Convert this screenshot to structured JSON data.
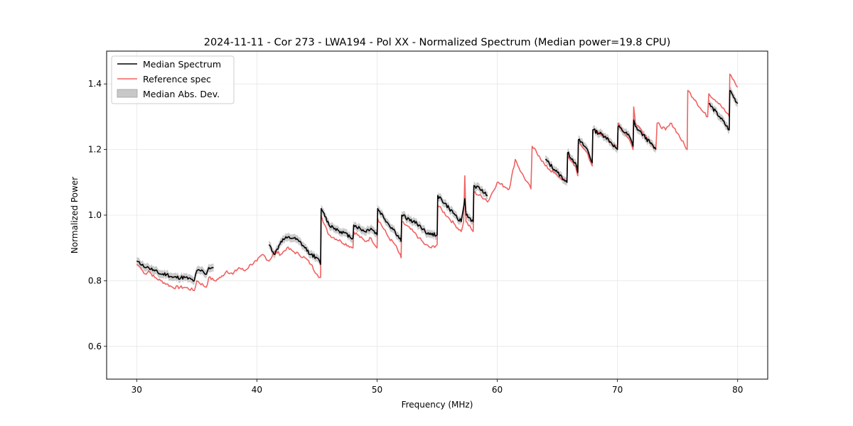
{
  "chart_data": {
    "type": "line",
    "title": "2024-11-11 - Cor 273 - LWA194 - Pol XX - Normalized Spectrum (Median power=19.8 CPU)",
    "xlabel": "Frequency (MHz)",
    "ylabel": "Normalized Power",
    "xlim": [
      27.5,
      82.5
    ],
    "ylim": [
      0.5,
      1.5
    ],
    "xticks": [
      30,
      40,
      50,
      60,
      70,
      80
    ],
    "xtick_labels": [
      "30",
      "40",
      "50",
      "60",
      "70",
      "80"
    ],
    "yticks": [
      0.6,
      0.8,
      1.0,
      1.2,
      1.4
    ],
    "ytick_labels": [
      "0.6",
      "0.8",
      "1.0",
      "1.2",
      "1.4"
    ],
    "grid": true,
    "legend_position": "top-left",
    "colors": {
      "median": "#000000",
      "reference": "#f06262",
      "band": "#c8c8c8"
    },
    "legend": [
      {
        "label": "Median Spectrum",
        "kind": "line",
        "series": "median"
      },
      {
        "label": "Reference spec",
        "kind": "line",
        "series": "reference"
      },
      {
        "label": "Median Abs. Dev.",
        "kind": "band",
        "series": "band"
      }
    ],
    "series": [
      {
        "name": "Reference spec",
        "id": "reference",
        "color": "#f06262",
        "x": [
          30.0,
          30.3,
          30.5,
          30.8,
          31.0,
          31.5,
          32.0,
          32.5,
          33.0,
          34.0,
          34.8,
          35.0,
          35.8,
          36.0,
          36.5,
          37.0,
          37.5,
          38.0,
          38.5,
          39.0,
          39.5,
          40.0,
          40.5,
          41.0,
          41.5,
          42.0,
          42.5,
          43.0,
          43.5,
          44.0,
          44.5,
          45.0,
          45.3,
          45.35,
          45.5,
          46.0,
          47.0,
          48.0,
          48.05,
          49.0,
          49.5,
          50.0,
          50.05,
          51.0,
          51.5,
          52.0,
          52.05,
          53.0,
          53.5,
          54.0,
          54.5,
          55.0,
          55.05,
          56.0,
          56.5,
          57.0,
          57.2,
          57.3,
          57.4,
          58.0,
          58.05,
          59.0,
          59.2,
          60.0,
          61.0,
          61.5,
          62.0,
          62.8,
          62.9,
          63.5,
          64.0,
          65.0,
          65.8,
          65.85,
          66.5,
          66.7,
          66.75,
          67.5,
          67.9,
          67.95,
          69.0,
          69.5,
          70.0,
          70.05,
          71.0,
          71.3,
          71.35,
          71.5,
          72.0,
          73.2,
          73.3,
          74.0,
          74.5,
          75.0,
          75.8,
          75.85,
          76.5,
          77.0,
          77.5,
          77.6,
          78.5,
          79.3,
          79.35,
          80.0
        ],
        "y": [
          0.85,
          0.84,
          0.83,
          0.82,
          0.83,
          0.81,
          0.8,
          0.79,
          0.78,
          0.78,
          0.77,
          0.8,
          0.78,
          0.81,
          0.8,
          0.81,
          0.83,
          0.82,
          0.84,
          0.83,
          0.85,
          0.86,
          0.88,
          0.86,
          0.89,
          0.88,
          0.9,
          0.89,
          0.88,
          0.87,
          0.85,
          0.82,
          0.81,
          1.0,
          0.98,
          0.94,
          0.92,
          0.9,
          0.95,
          0.92,
          0.93,
          0.9,
          0.99,
          0.93,
          0.91,
          0.87,
          0.98,
          0.95,
          0.93,
          0.91,
          0.9,
          0.91,
          1.03,
          0.99,
          0.97,
          0.95,
          0.98,
          1.12,
          0.98,
          0.95,
          1.07,
          1.05,
          1.04,
          1.1,
          1.08,
          1.17,
          1.13,
          1.08,
          1.21,
          1.18,
          1.15,
          1.12,
          1.1,
          1.18,
          1.15,
          1.12,
          1.22,
          1.19,
          1.15,
          1.26,
          1.24,
          1.22,
          1.2,
          1.28,
          1.23,
          1.2,
          1.33,
          1.28,
          1.26,
          1.2,
          1.28,
          1.26,
          1.28,
          1.25,
          1.2,
          1.38,
          1.35,
          1.32,
          1.3,
          1.37,
          1.34,
          1.3,
          1.43,
          1.39
        ]
      },
      {
        "name": "Median Spectrum",
        "id": "median",
        "color": "#000000",
        "segments": [
          {
            "x": [
              30.0,
              30.3,
              30.5,
              30.8,
              31.0,
              31.5,
              32.0,
              32.5,
              33.0,
              34.0,
              34.8,
              35.0,
              35.5,
              35.8,
              36.0,
              36.4
            ],
            "y": [
              0.86,
              0.85,
              0.85,
              0.84,
              0.84,
              0.83,
              0.82,
              0.82,
              0.81,
              0.81,
              0.8,
              0.83,
              0.83,
              0.82,
              0.84,
              0.84
            ]
          },
          {
            "x": [
              41.0,
              41.5,
              42.0,
              42.5,
              43.0,
              43.5,
              44.0,
              44.5,
              45.0,
              45.3,
              45.35,
              45.5,
              46.0,
              47.0,
              48.0,
              48.05,
              49.0,
              49.5,
              50.0,
              50.05,
              51.0,
              51.5,
              52.0,
              52.05,
              53.0,
              53.5,
              54.0,
              54.5,
              55.0,
              55.05,
              56.0,
              56.5,
              57.0,
              57.3,
              57.4,
              58.0,
              58.05,
              59.0,
              59.2
            ],
            "y": [
              0.91,
              0.88,
              0.92,
              0.93,
              0.93,
              0.92,
              0.9,
              0.88,
              0.87,
              0.85,
              1.02,
              1.01,
              0.97,
              0.95,
              0.93,
              0.97,
              0.95,
              0.96,
              0.94,
              1.02,
              0.97,
              0.95,
              0.92,
              1.0,
              0.98,
              0.97,
              0.95,
              0.94,
              0.94,
              1.06,
              1.02,
              1.0,
              0.98,
              1.05,
              1.0,
              0.98,
              1.09,
              1.07,
              1.06
            ]
          },
          {
            "x": [
              64.0,
              65.0,
              65.8,
              65.85,
              66.5,
              66.7,
              66.75,
              67.5,
              67.9,
              67.95,
              69.0,
              69.5,
              70.0,
              70.05,
              71.0,
              71.3,
              71.35,
              71.5,
              72.0,
              73.2
            ],
            "y": [
              1.17,
              1.13,
              1.1,
              1.19,
              1.16,
              1.13,
              1.23,
              1.2,
              1.16,
              1.26,
              1.24,
              1.22,
              1.2,
              1.27,
              1.24,
              1.21,
              1.29,
              1.27,
              1.25,
              1.2
            ]
          },
          {
            "x": [
              77.6,
              78.5,
              79.3,
              79.35,
              80.0
            ],
            "y": [
              1.34,
              1.3,
              1.26,
              1.38,
              1.34
            ]
          }
        ]
      },
      {
        "name": "Median Abs. Dev.",
        "id": "band",
        "color": "#c8c8c8",
        "halfwidth": 0.012
      }
    ]
  }
}
